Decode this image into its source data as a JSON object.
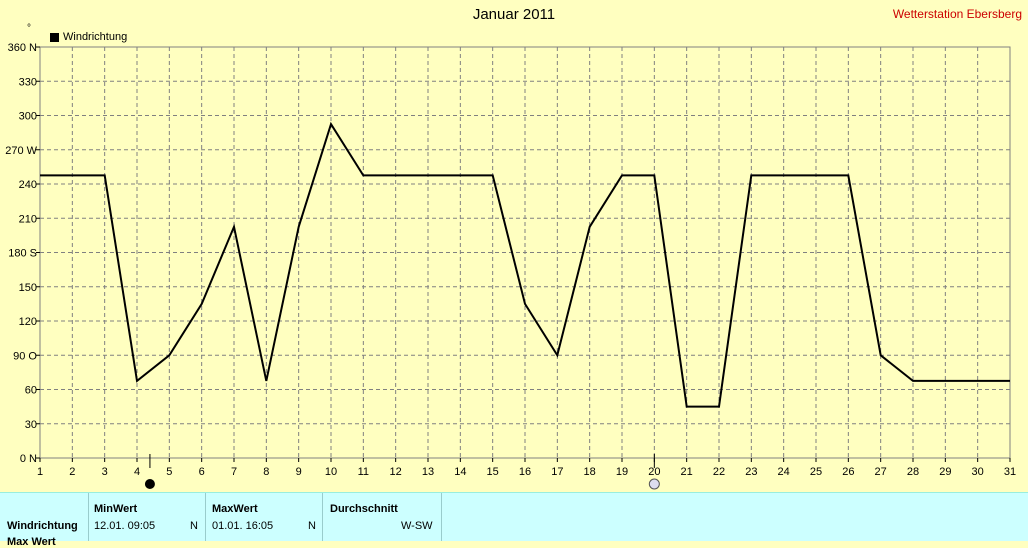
{
  "header": {
    "title": "Januar 2011",
    "station": "Wetterstation Ebersberg",
    "degree_mark": "°",
    "legend_label": "Windrichtung"
  },
  "chart_data": {
    "type": "line",
    "title": "Januar 2011",
    "xlabel": "",
    "ylabel": "",
    "x": [
      1,
      2,
      3,
      4,
      5,
      6,
      7,
      8,
      9,
      10,
      11,
      12,
      13,
      14,
      15,
      16,
      17,
      18,
      19,
      20,
      21,
      22,
      23,
      24,
      25,
      26,
      27,
      28,
      29,
      30,
      31
    ],
    "y_ticks": [
      "360 N",
      "330",
      "300",
      "270 W",
      "240",
      "210",
      "180 S",
      "150",
      "120",
      "90  O",
      "60",
      "30",
      "0  N"
    ],
    "ylim": [
      0,
      360
    ],
    "xlim": [
      1,
      31
    ],
    "grid": true,
    "legend_position": "top-left",
    "series": [
      {
        "name": "Windrichtung",
        "color": "#000000",
        "points": [
          [
            1,
            247.5
          ],
          [
            3,
            247.5
          ],
          [
            4,
            67.5
          ],
          [
            5,
            90
          ],
          [
            6,
            135
          ],
          [
            7,
            202.5
          ],
          [
            8,
            67.5
          ],
          [
            9,
            202.5
          ],
          [
            10,
            292.5
          ],
          [
            11,
            247.5
          ],
          [
            15,
            247.5
          ],
          [
            16,
            135
          ],
          [
            17,
            90
          ],
          [
            18,
            202.5
          ],
          [
            19,
            247.5
          ],
          [
            20,
            247.5
          ],
          [
            21,
            45
          ],
          [
            22,
            45
          ],
          [
            23,
            247.5
          ],
          [
            26,
            247.5
          ],
          [
            27,
            90
          ],
          [
            28,
            67.5
          ],
          [
            31,
            67.5
          ]
        ]
      }
    ],
    "moon_markers": [
      {
        "day": 4.4,
        "phase": "new"
      },
      {
        "day": 20,
        "phase": "full"
      }
    ]
  },
  "footer": {
    "row_label": "Windrichtung",
    "row_label_2": "Max Wert",
    "min": {
      "header": "MinWert",
      "datetime": "12.01.  09:05",
      "dir": "N"
    },
    "max": {
      "header": "MaxWert",
      "datetime": "01.01.  16:05",
      "dir": "N"
    },
    "avg": {
      "header": "Durchschnitt",
      "value": "W-SW"
    }
  }
}
